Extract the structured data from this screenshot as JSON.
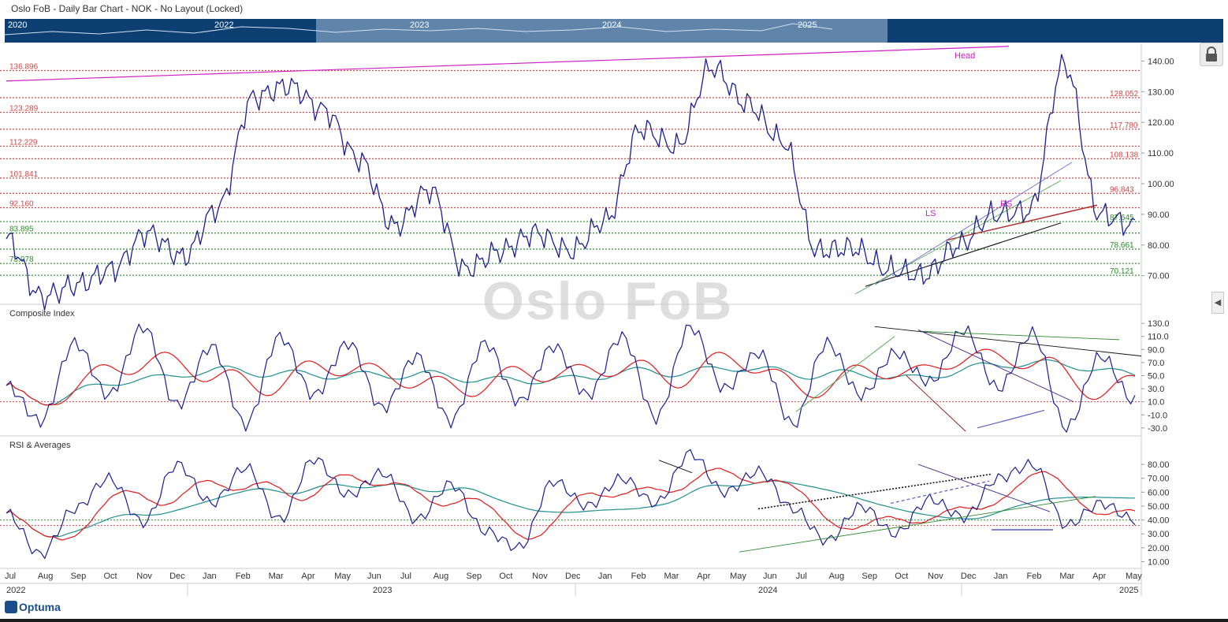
{
  "window": {
    "title": "Oslo FoB - Daily Bar Chart - NOK - No Layout (Locked)",
    "watermark": "Oslo FoB",
    "logo": "Optuma"
  },
  "navigator": {
    "years": [
      "2020",
      "2022",
      "2023",
      "2024",
      "2025"
    ]
  },
  "colors": {
    "price": "#1c1f8c",
    "fast_avg": "#e31a1a",
    "slow_avg": "#1f8f8f",
    "resistance": "#d04848",
    "support": "#2e8b2e",
    "magenta": "#d020c8"
  },
  "icons": [
    "lock-icon",
    "chevron-left-icon"
  ],
  "chart_data": [
    {
      "type": "line",
      "name": "price-panel",
      "x": [
        "2022-07-01",
        "2022-08-01",
        "2022-09-01",
        "2022-10-01",
        "2022-11-01",
        "2022-12-01",
        "2023-01-01",
        "2023-02-01",
        "2023-03-01",
        "2023-04-01",
        "2023-05-01",
        "2023-06-01",
        "2023-07-01",
        "2023-08-01",
        "2023-09-01",
        "2023-10-01",
        "2023-11-01",
        "2023-12-01",
        "2024-01-01",
        "2024-02-01",
        "2024-03-01",
        "2024-04-01",
        "2024-05-01",
        "2024-06-01",
        "2024-07-01",
        "2024-08-01",
        "2024-09-01",
        "2024-10-01",
        "2024-11-01",
        "2024-12-01",
        "2025-01-01",
        "2025-02-01",
        "2025-03-01"
      ],
      "series": [
        {
          "values": [
            82,
            63,
            67,
            72,
            84,
            76,
            92,
            128,
            132,
            124,
            108,
            86,
            98,
            72,
            78,
            84,
            78,
            88,
            118,
            112,
            138,
            126,
            114,
            78,
            79,
            72,
            70,
            80,
            90,
            91,
            139,
            90,
            86
          ]
        }
      ],
      "ylim": [
        64,
        145
      ],
      "yticks": [
        "70.00",
        "80.00",
        "90.00",
        "100.00",
        "110.00",
        "120.00",
        "130.00",
        "140.00"
      ],
      "levels": [
        {
          "value": 136.896,
          "label": "136.896",
          "side": "left",
          "color": "#d04848"
        },
        {
          "value": 128.052,
          "label": "128.052",
          "side": "right",
          "color": "#d04848"
        },
        {
          "value": 123.289,
          "label": "123.289",
          "side": "left",
          "color": "#d04848"
        },
        {
          "value": 117.78,
          "label": "117.780",
          "side": "right",
          "color": "#d04848"
        },
        {
          "value": 112.229,
          "label": "112.229",
          "side": "left",
          "color": "#d04848"
        },
        {
          "value": 108.138,
          "label": "108.138",
          "side": "right",
          "color": "#d04848"
        },
        {
          "value": 101.841,
          "label": "101.841",
          "side": "left",
          "color": "#d04848"
        },
        {
          "value": 96.843,
          "label": "96.843",
          "side": "right",
          "color": "#d04848"
        },
        {
          "value": 92.16,
          "label": "92.160",
          "side": "left",
          "color": "#d04848"
        },
        {
          "value": 87.645,
          "label": "87.645",
          "side": "right",
          "color": "#2e8b2e"
        },
        {
          "value": 83.895,
          "label": "83.895",
          "side": "left",
          "color": "#2e8b2e"
        },
        {
          "value": 78.661,
          "label": "78.661",
          "side": "right",
          "color": "#2e8b2e"
        },
        {
          "value": 73.978,
          "label": "73.978",
          "side": "left",
          "color": "#2e8b2e"
        },
        {
          "value": 70.121,
          "label": "70.121",
          "side": "right",
          "color": "#2e8b2e"
        }
      ],
      "annotations": [
        "Head",
        "LS",
        "RS"
      ]
    },
    {
      "type": "line",
      "name": "composite-panel",
      "title": "Composite Index",
      "ylim": [
        -35,
        135
      ],
      "yticks": [
        "-30.0",
        "-10.0",
        "10.0",
        "30.0",
        "50.0",
        "70.0",
        "90.0",
        "110.0",
        "130.0"
      ],
      "levels": [
        {
          "value": 10
        }
      ],
      "series": [
        {
          "values": [
            35,
            -20,
            100,
            20,
            125,
            5,
            95,
            -25,
            110,
            20,
            100,
            0,
            80,
            -20,
            100,
            10,
            95,
            20,
            110,
            -15,
            125,
            30,
            85,
            -25,
            100,
            20,
            85,
            40,
            120,
            30,
            115,
            -30,
            80,
            10
          ]
        }
      ]
    },
    {
      "type": "line",
      "name": "rsi-panel",
      "title": "RSI & Averages",
      "ylim": [
        8,
        88
      ],
      "yticks": [
        "10.00",
        "20.00",
        "30.00",
        "40.00",
        "50.00",
        "60.00",
        "70.00",
        "80.00"
      ],
      "levels": [
        {
          "value": 40
        },
        {
          "value": 36
        }
      ],
      "series": [
        {
          "values": [
            45,
            15,
            48,
            70,
            38,
            80,
            52,
            78,
            40,
            84,
            58,
            74,
            40,
            66,
            32,
            20,
            68,
            50,
            70,
            52,
            88,
            60,
            75,
            48,
            25,
            50,
            30,
            55,
            42,
            70,
            80,
            36,
            52,
            40
          ]
        }
      ]
    }
  ],
  "xaxis": {
    "months": [
      "Jul",
      "Aug",
      "Sep",
      "Oct",
      "Nov",
      "Dec",
      "Jan",
      "Feb",
      "Mar",
      "Apr",
      "May",
      "Jun",
      "Jul",
      "Aug",
      "Sep",
      "Oct",
      "Nov",
      "Dec",
      "Jan",
      "Feb",
      "Mar",
      "Apr",
      "May",
      "Jun",
      "Jul",
      "Aug",
      "Sep",
      "Oct",
      "Nov",
      "Dec",
      "Jan",
      "Feb",
      "Mar",
      "Apr",
      "May"
    ],
    "years": [
      "2022",
      "2023",
      "2024",
      "2025"
    ]
  }
}
